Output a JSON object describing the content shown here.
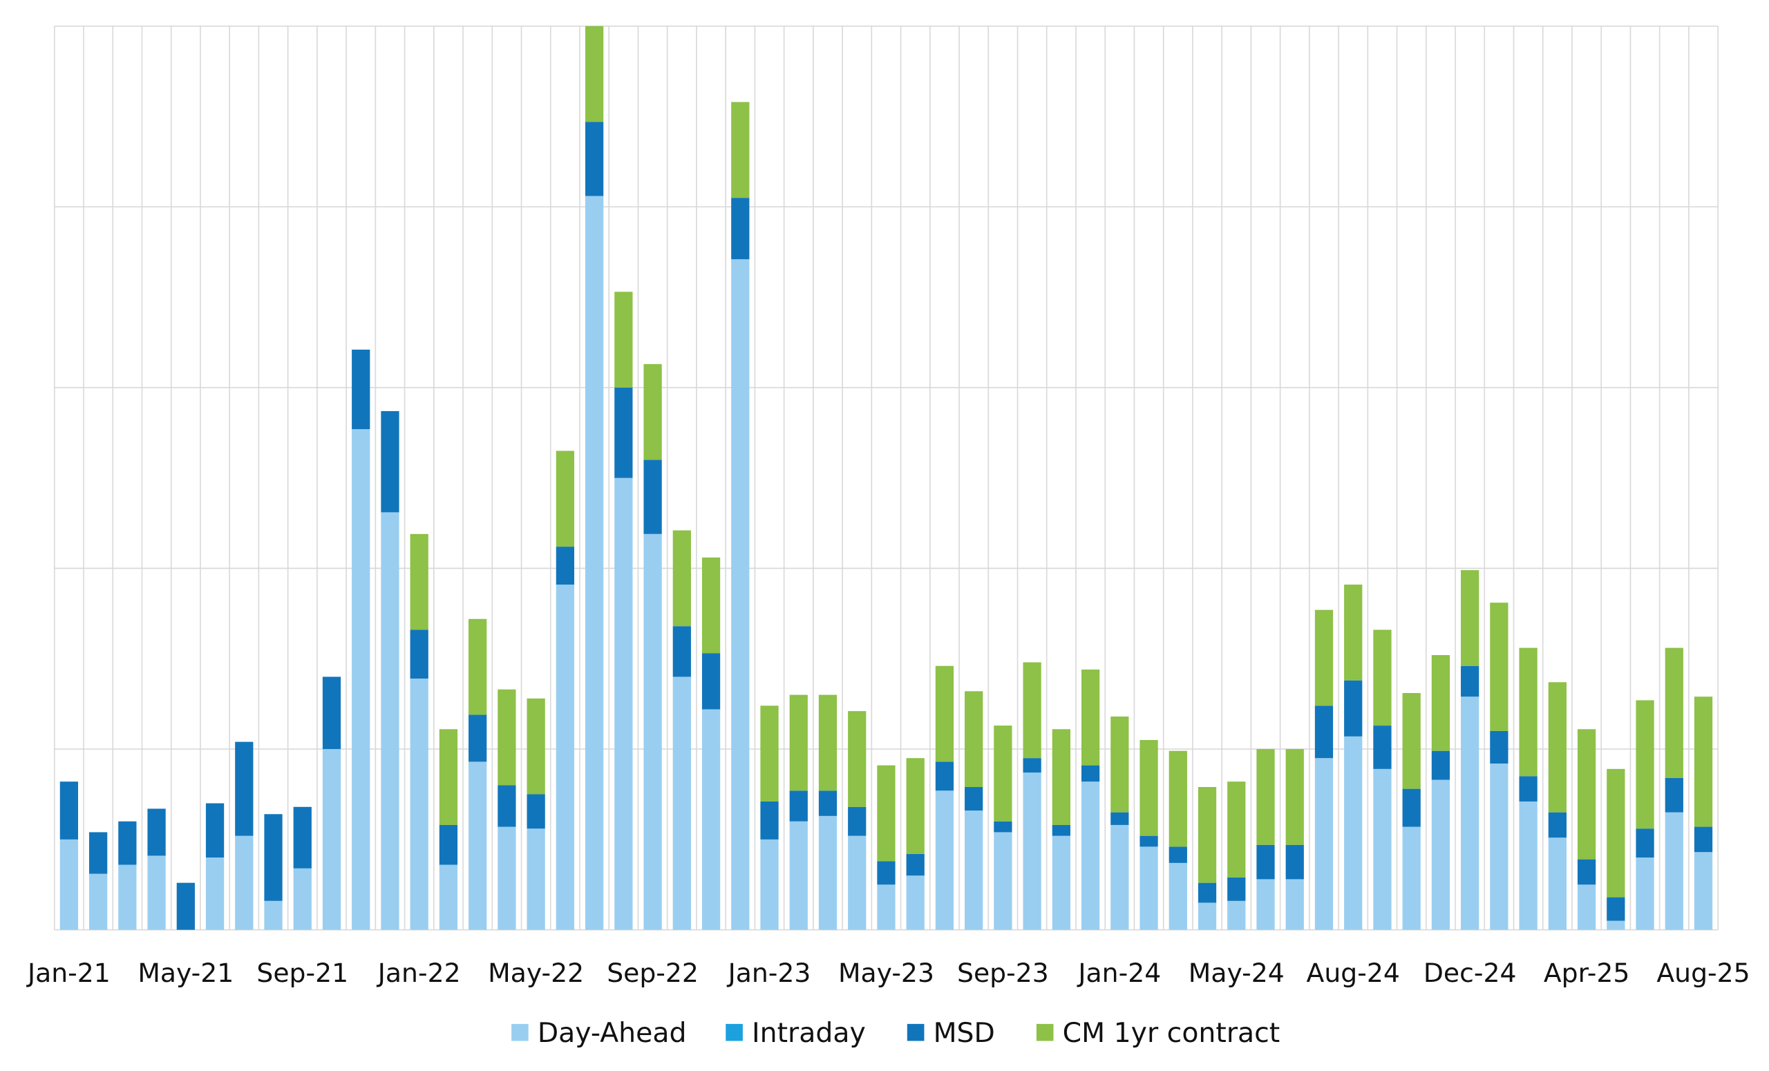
{
  "chart_data": {
    "type": "bar",
    "stacked": true,
    "title": "",
    "xlabel": "",
    "ylabel": "",
    "ylim": [
      0,
      500
    ],
    "y_gridlines": [
      0,
      100,
      200,
      300,
      400,
      500
    ],
    "y_tick_labels_shown": false,
    "grid": true,
    "legend_position": "bottom",
    "x_tick_labels": [
      {
        "index": 0,
        "label": "Jan-21"
      },
      {
        "index": 4,
        "label": "May-21"
      },
      {
        "index": 8,
        "label": "Sep-21"
      },
      {
        "index": 12,
        "label": "Jan-22"
      },
      {
        "index": 16,
        "label": "May-22"
      },
      {
        "index": 20,
        "label": "Sep-22"
      },
      {
        "index": 24,
        "label": "Jan-23"
      },
      {
        "index": 28,
        "label": "May-23"
      },
      {
        "index": 32,
        "label": "Sep-23"
      },
      {
        "index": 36,
        "label": "Jan-24"
      },
      {
        "index": 40,
        "label": "May-24"
      },
      {
        "index": 44,
        "label": "Aug-24"
      },
      {
        "index": 48,
        "label": "Dec-24"
      },
      {
        "index": 52,
        "label": "Apr-25"
      },
      {
        "index": 56,
        "label": "Aug-25"
      }
    ],
    "series": [
      {
        "name": "Day-Ahead",
        "color": "#99CEF0",
        "values": [
          50,
          31,
          36,
          41,
          0,
          40,
          52,
          16,
          34,
          100,
          277,
          231,
          139,
          36,
          93,
          57,
          56,
          191,
          406,
          250,
          219,
          140,
          122,
          371,
          50,
          60,
          63,
          52,
          25,
          30,
          77,
          66,
          54,
          87,
          52,
          82,
          58,
          46,
          37,
          15,
          16,
          28,
          28,
          95,
          107,
          89,
          57,
          83,
          129,
          92,
          71,
          51,
          25,
          5,
          40,
          65,
          43
        ]
      },
      {
        "name": "Intraday",
        "color": "#1BA1DE",
        "values": [
          0,
          0,
          0,
          0,
          0,
          0,
          0,
          0,
          0,
          0,
          0,
          0,
          0,
          0,
          0,
          0,
          0,
          0,
          0,
          0,
          0,
          0,
          0,
          0,
          0,
          0,
          0,
          0,
          0,
          0,
          0,
          0,
          0,
          0,
          0,
          0,
          0,
          0,
          0,
          0,
          0,
          0,
          0,
          0,
          0,
          0,
          0,
          0,
          0,
          0,
          0,
          0,
          0,
          0,
          0,
          0,
          0
        ]
      },
      {
        "name": "MSD",
        "color": "#1175BB",
        "values": [
          32,
          23,
          24,
          26,
          26,
          30,
          52,
          48,
          34,
          40,
          44,
          56,
          27,
          22,
          26,
          23,
          19,
          21,
          41,
          50,
          41,
          28,
          31,
          34,
          21,
          17,
          14,
          16,
          13,
          12,
          16,
          13,
          6,
          8,
          6,
          9,
          7,
          6,
          9,
          11,
          13,
          19,
          19,
          29,
          31,
          24,
          21,
          16,
          17,
          18,
          14,
          14,
          14,
          13,
          16,
          19,
          14
        ]
      },
      {
        "name": "CM 1yr contract",
        "color": "#8DC147",
        "values": [
          0,
          0,
          0,
          0,
          0,
          0,
          0,
          0,
          0,
          0,
          0,
          0,
          53,
          53,
          53,
          53,
          53,
          53,
          53,
          53,
          53,
          53,
          53,
          53,
          53,
          53,
          53,
          53,
          53,
          53,
          53,
          53,
          53,
          53,
          53,
          53,
          53,
          53,
          53,
          53,
          53,
          53,
          53,
          53,
          53,
          53,
          53,
          53,
          53,
          71,
          71,
          72,
          72,
          71,
          71,
          72,
          72
        ]
      }
    ]
  }
}
